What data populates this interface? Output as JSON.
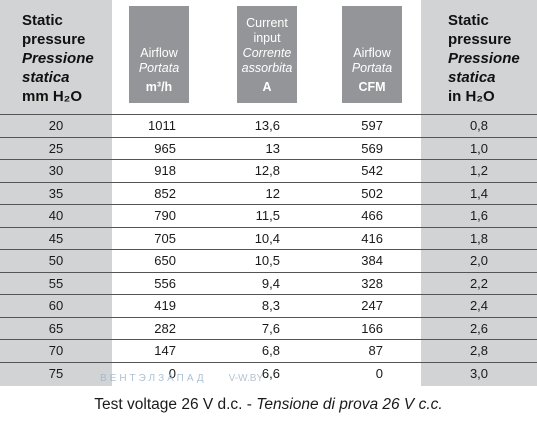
{
  "header": {
    "col1": {
      "line1": "Static",
      "line2": "pressure",
      "line3": "Pressione",
      "line4": "statica",
      "line5": "mm H₂O"
    },
    "col2": {
      "line1": "Airflow",
      "line2": "Portata",
      "unit": "m³/h"
    },
    "col3": {
      "line1": "Current",
      "line2": "input",
      "line3": "Corrente",
      "line4": "assorbita",
      "unit": "A"
    },
    "col4": {
      "line1": "Airflow",
      "line2": "Portata",
      "unit": "CFM"
    },
    "col5": {
      "line1": "Static",
      "line2": "pressure",
      "line3": "Pressione",
      "line4": "statica",
      "line5": "in H₂O"
    }
  },
  "rows": [
    [
      "20",
      "1011",
      "13,6",
      "597",
      "0,8"
    ],
    [
      "25",
      "965",
      "13",
      "569",
      "1,0"
    ],
    [
      "30",
      "918",
      "12,8",
      "542",
      "1,2"
    ],
    [
      "35",
      "852",
      "12",
      "502",
      "1,4"
    ],
    [
      "40",
      "790",
      "11,5",
      "466",
      "1,6"
    ],
    [
      "45",
      "705",
      "10,4",
      "416",
      "1,8"
    ],
    [
      "50",
      "650",
      "10,5",
      "384",
      "2,0"
    ],
    [
      "55",
      "556",
      "9,4",
      "328",
      "2,2"
    ],
    [
      "60",
      "419",
      "8,3",
      "247",
      "2,4"
    ],
    [
      "65",
      "282",
      "7,6",
      "166",
      "2,6"
    ],
    [
      "70",
      "147",
      "6,8",
      "87",
      "2,8"
    ],
    [
      "75",
      "0",
      "6,6",
      "0",
      "3,0"
    ]
  ],
  "footer": {
    "normal": "Test voltage 26 V d.c. - ",
    "italic": "Tensione di prova 26 V c.c."
  },
  "watermark": {
    "brand": "ВЕНТЭЛЗАПАД",
    "url": "V-W.BY"
  },
  "colors": {
    "header_box": "#939598",
    "column_band": "#d1d3d4",
    "rule": "#555555"
  }
}
